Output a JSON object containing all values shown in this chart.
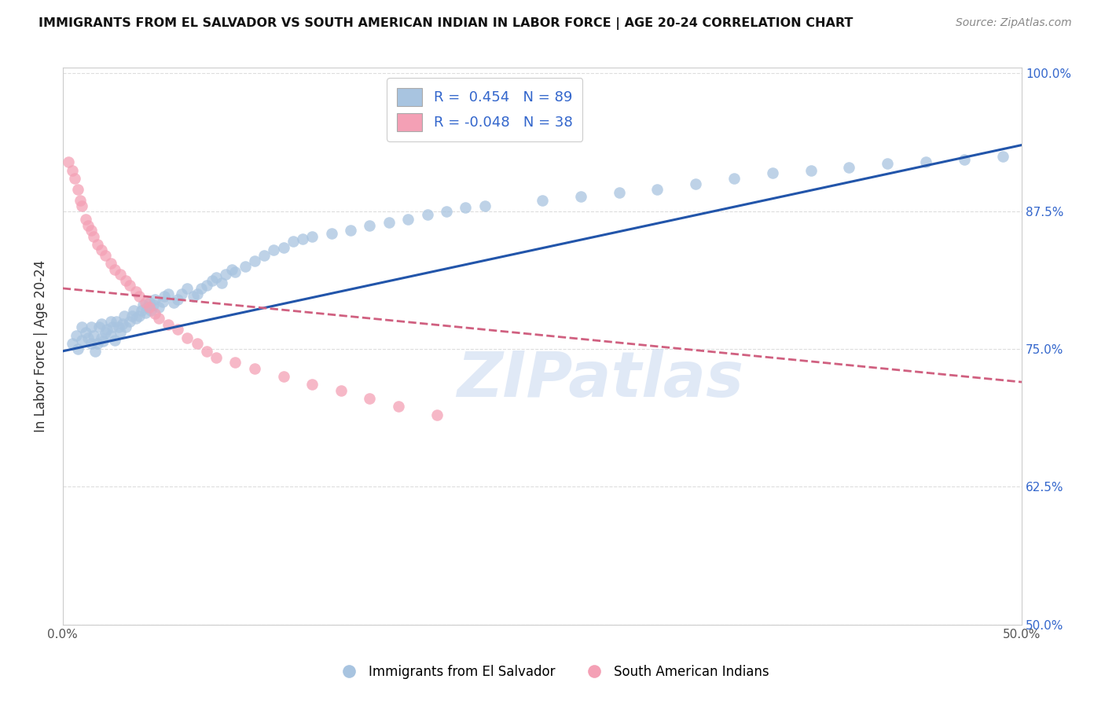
{
  "title": "IMMIGRANTS FROM EL SALVADOR VS SOUTH AMERICAN INDIAN IN LABOR FORCE | AGE 20-24 CORRELATION CHART",
  "source": "Source: ZipAtlas.com",
  "xlabel": "",
  "ylabel": "In Labor Force | Age 20-24",
  "xlim": [
    0.0,
    0.5
  ],
  "ylim": [
    0.5,
    1.005
  ],
  "xticks": [
    0.0,
    0.1,
    0.2,
    0.3,
    0.4,
    0.5
  ],
  "xticklabels": [
    "0.0%",
    "",
    "",
    "",
    "",
    "50.0%"
  ],
  "yticks_right": [
    0.5,
    0.625,
    0.75,
    0.875,
    1.0
  ],
  "yticklabels_right": [
    "50.0%",
    "62.5%",
    "75.0%",
    "87.5%",
    "100.0%"
  ],
  "blue_color": "#a8c4e0",
  "pink_color": "#f4a0b5",
  "blue_line_color": "#2255aa",
  "pink_line_color": "#d06080",
  "watermark": "ZIPatlas",
  "watermark_color": "#c8d8f0",
  "legend_r_blue": "0.454",
  "legend_n_blue": 89,
  "legend_r_pink": "-0.048",
  "legend_n_pink": 38,
  "legend_label_blue": "Immigrants from El Salvador",
  "legend_label_pink": "South American Indians",
  "blue_line_x0": 0.0,
  "blue_line_y0": 0.748,
  "blue_line_x1": 0.5,
  "blue_line_y1": 0.935,
  "pink_line_x0": 0.0,
  "pink_line_y0": 0.805,
  "pink_line_x1": 0.5,
  "pink_line_y1": 0.72,
  "grid_color": "#dddddd",
  "background_color": "#ffffff",
  "blue_scatter_x": [
    0.005,
    0.007,
    0.008,
    0.01,
    0.01,
    0.012,
    0.013,
    0.015,
    0.015,
    0.016,
    0.017,
    0.018,
    0.019,
    0.02,
    0.02,
    0.021,
    0.022,
    0.023,
    0.025,
    0.025,
    0.026,
    0.027,
    0.028,
    0.029,
    0.03,
    0.031,
    0.032,
    0.033,
    0.035,
    0.036,
    0.037,
    0.038,
    0.04,
    0.041,
    0.042,
    0.043,
    0.044,
    0.045,
    0.046,
    0.047,
    0.048,
    0.05,
    0.052,
    0.053,
    0.055,
    0.058,
    0.06,
    0.062,
    0.065,
    0.068,
    0.07,
    0.072,
    0.075,
    0.078,
    0.08,
    0.083,
    0.085,
    0.088,
    0.09,
    0.095,
    0.1,
    0.105,
    0.11,
    0.115,
    0.12,
    0.125,
    0.13,
    0.14,
    0.15,
    0.16,
    0.17,
    0.18,
    0.19,
    0.2,
    0.21,
    0.22,
    0.25,
    0.27,
    0.29,
    0.31,
    0.33,
    0.35,
    0.37,
    0.39,
    0.41,
    0.43,
    0.45,
    0.47,
    0.49
  ],
  "blue_scatter_y": [
    0.755,
    0.762,
    0.75,
    0.77,
    0.758,
    0.765,
    0.76,
    0.755,
    0.77,
    0.762,
    0.748,
    0.755,
    0.77,
    0.76,
    0.773,
    0.757,
    0.765,
    0.768,
    0.762,
    0.775,
    0.77,
    0.758,
    0.775,
    0.77,
    0.765,
    0.773,
    0.78,
    0.77,
    0.775,
    0.78,
    0.785,
    0.778,
    0.78,
    0.785,
    0.79,
    0.783,
    0.788,
    0.792,
    0.785,
    0.79,
    0.795,
    0.788,
    0.793,
    0.798,
    0.8,
    0.792,
    0.795,
    0.8,
    0.805,
    0.798,
    0.8,
    0.805,
    0.808,
    0.812,
    0.815,
    0.81,
    0.818,
    0.822,
    0.82,
    0.825,
    0.83,
    0.835,
    0.84,
    0.842,
    0.848,
    0.85,
    0.852,
    0.855,
    0.858,
    0.862,
    0.865,
    0.868,
    0.872,
    0.875,
    0.878,
    0.88,
    0.885,
    0.888,
    0.892,
    0.895,
    0.9,
    0.905,
    0.91,
    0.912,
    0.915,
    0.918,
    0.92,
    0.922,
    0.925
  ],
  "pink_scatter_x": [
    0.003,
    0.005,
    0.006,
    0.008,
    0.009,
    0.01,
    0.012,
    0.013,
    0.015,
    0.016,
    0.018,
    0.02,
    0.022,
    0.025,
    0.027,
    0.03,
    0.033,
    0.035,
    0.038,
    0.04,
    0.043,
    0.045,
    0.048,
    0.05,
    0.055,
    0.06,
    0.065,
    0.07,
    0.075,
    0.08,
    0.09,
    0.1,
    0.115,
    0.13,
    0.145,
    0.16,
    0.175,
    0.195
  ],
  "pink_scatter_y": [
    0.92,
    0.912,
    0.905,
    0.895,
    0.885,
    0.88,
    0.868,
    0.862,
    0.858,
    0.852,
    0.845,
    0.84,
    0.835,
    0.828,
    0.822,
    0.818,
    0.812,
    0.808,
    0.802,
    0.798,
    0.792,
    0.788,
    0.782,
    0.778,
    0.772,
    0.768,
    0.76,
    0.755,
    0.748,
    0.742,
    0.738,
    0.732,
    0.725,
    0.718,
    0.712,
    0.705,
    0.698,
    0.69
  ]
}
